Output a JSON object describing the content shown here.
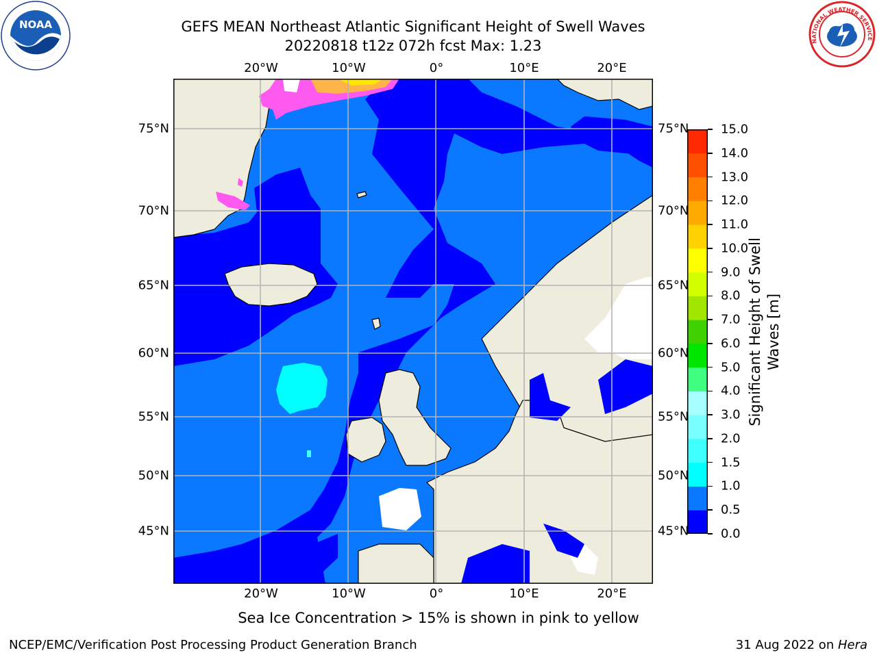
{
  "title": {
    "line1": "GEFS MEAN Northeast Atlantic Significant Height of Swell Waves",
    "line2": "20220818 t12z 072h fcst   Max: 1.23"
  },
  "axes": {
    "lon_ticks_top": [
      "20°W",
      "10°W",
      "0°",
      "10°E",
      "20°E"
    ],
    "lon_ticks_bottom": [
      "20°W",
      "10°W",
      "0°",
      "10°E",
      "20°E"
    ],
    "lat_ticks_left": [
      "75°N",
      "70°N",
      "65°N",
      "60°N",
      "55°N",
      "50°N",
      "45°N"
    ],
    "lat_ticks_right": [
      "75°N",
      "70°N",
      "65°N",
      "60°N",
      "55°N",
      "50°N",
      "45°N"
    ]
  },
  "colorbar": {
    "label_line1": "Significant Height of Swell",
    "label_line2": "Waves [m]",
    "ticks": [
      "0.0",
      "0.5",
      "1.0",
      "1.5",
      "2.0",
      "3.0",
      "4.0",
      "5.0",
      "6.0",
      "7.0",
      "8.0",
      "9.0",
      "10.0",
      "11.0",
      "12.0",
      "13.0",
      "14.0",
      "15.0"
    ],
    "colors": [
      "#0000ff",
      "#0a78ff",
      "#00ffff",
      "#40ffff",
      "#7affff",
      "#a8ffff",
      "#40ff80",
      "#00e600",
      "#40d200",
      "#a0e600",
      "#d2ff00",
      "#ffff00",
      "#ffd200",
      "#ffaa00",
      "#ff8000",
      "#ff5000",
      "#ff2800",
      "#ff0000"
    ]
  },
  "map_colors": {
    "land": "#eeecdc",
    "ocean_low": "#0000ff",
    "ocean_mid": "#0a78ff",
    "ocean_high": "#00ffff",
    "ice_pink": "#ff5af0",
    "ice_yellow": "#ffe600",
    "grid": "#b4b4b4"
  },
  "footnote": "Sea Ice Concentration > 15% is shown in pink to yellow",
  "credit": "NCEP/EMC/Verification Post Processing Product Generation Branch",
  "date": {
    "text": "31 Aug 2022 on ",
    "machine": "Hera"
  },
  "logos": {
    "noaa": "NOAA",
    "nws": "NATIONAL WEATHER SERVICE"
  }
}
